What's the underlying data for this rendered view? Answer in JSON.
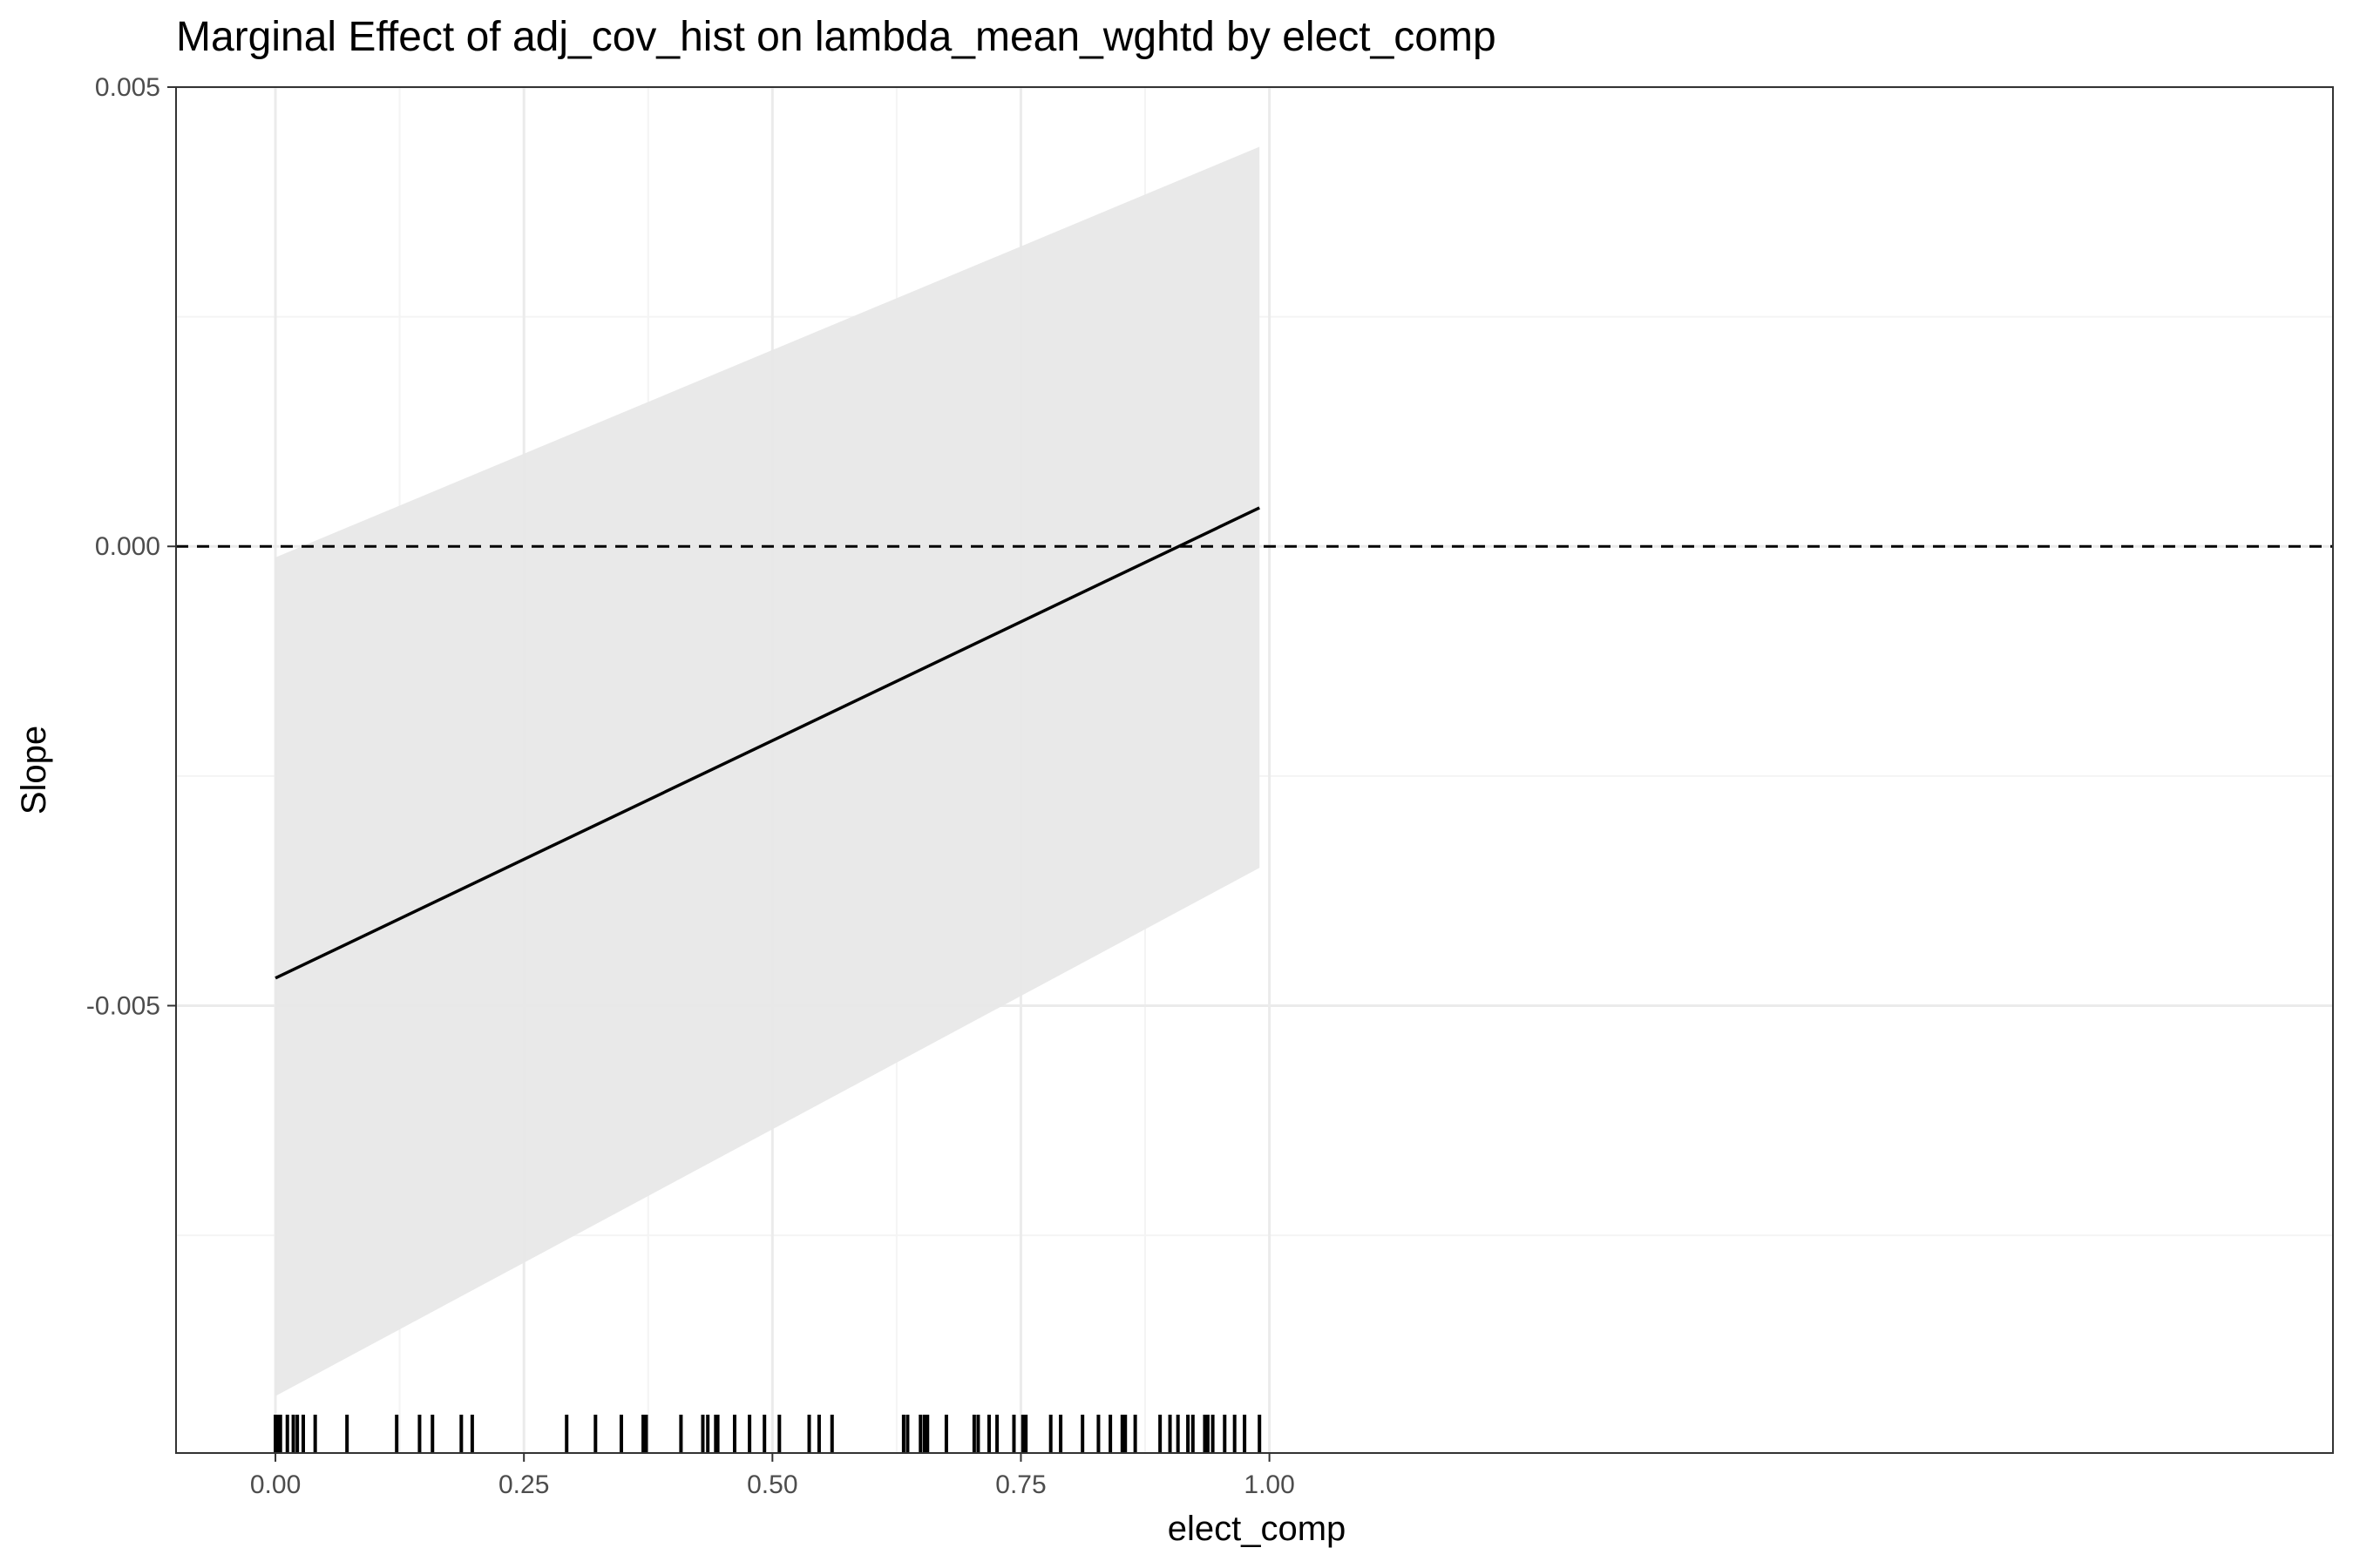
{
  "chart_data": {
    "type": "line",
    "title": "Marginal Effect of adj_cov_hist on lambda_mean_wghtd by elect_comp",
    "xlabel": "elect_comp",
    "ylabel": "Slope",
    "xlim": [
      -0.1,
      2.07
    ],
    "ylim": [
      -0.00987,
      0.005
    ],
    "x_ticks": [
      0.0,
      0.25,
      0.5,
      0.75,
      1.0
    ],
    "x_tick_labels": [
      "0.00",
      "0.25",
      "0.50",
      "0.75",
      "1.00"
    ],
    "y_ticks": [
      0.005,
      0.0,
      -0.005
    ],
    "y_tick_labels": [
      "0.005",
      "0.000",
      "-0.005"
    ],
    "grid": true,
    "reference_line": {
      "y": 0.0,
      "style": "dashed"
    },
    "series": [
      {
        "type": "line",
        "x": [
          0.0,
          0.99
        ],
        "y": [
          -0.0047,
          0.00042
        ]
      }
    ],
    "ribbon": {
      "x": [
        0.0,
        0.99
      ],
      "lower": [
        -0.00925,
        -0.0035
      ],
      "upper": [
        -0.00012,
        0.00435
      ]
    },
    "rug_x": [
      0.0,
      0.003,
      0.005,
      0.012,
      0.018,
      0.022,
      0.028,
      0.04,
      0.072,
      0.122,
      0.145,
      0.158,
      0.187,
      0.198,
      0.293,
      0.322,
      0.348,
      0.37,
      0.373,
      0.408,
      0.43,
      0.435,
      0.443,
      0.445,
      0.462,
      0.477,
      0.492,
      0.507,
      0.537,
      0.547,
      0.56,
      0.632,
      0.636,
      0.649,
      0.653,
      0.656,
      0.675,
      0.703,
      0.707,
      0.718,
      0.726,
      0.743,
      0.752,
      0.755,
      0.78,
      0.79,
      0.812,
      0.828,
      0.84,
      0.852,
      0.855,
      0.865,
      0.89,
      0.9,
      0.908,
      0.918,
      0.923,
      0.935,
      0.938,
      0.943,
      0.955,
      0.965,
      0.975,
      0.99
    ],
    "colors": {
      "line": "#000000",
      "ribbon": "#e8e8e8",
      "grid_major": "#ebebeb",
      "grid_minor": "#f4f4f4",
      "panel_border": "#333333",
      "tick_label": "#4d4d4d"
    }
  }
}
